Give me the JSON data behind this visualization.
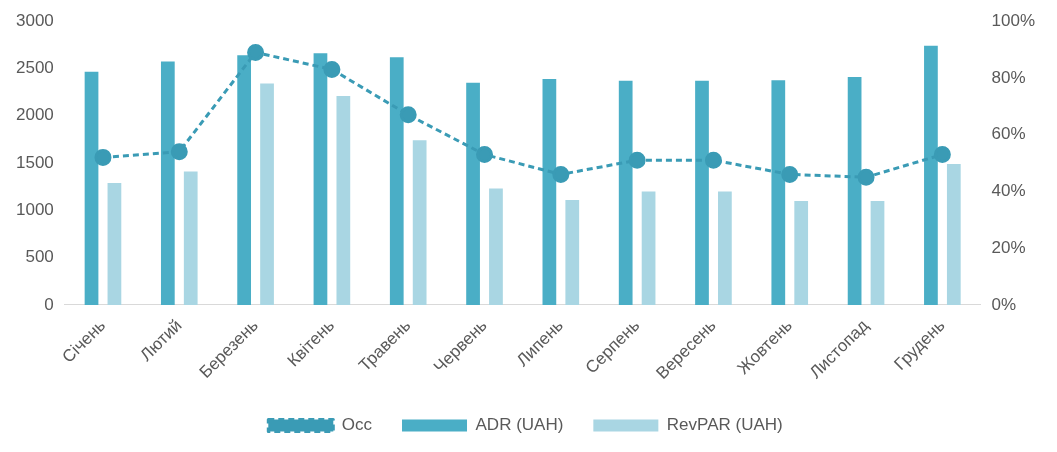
{
  "chart_data": {
    "type": "bar",
    "categories": [
      "Січень",
      "Лютий",
      "Березень",
      "Квітень",
      "Травень",
      "Червень",
      "Липень",
      "Серпень",
      "Вересень",
      "Жовтень",
      "Листопад",
      "Грудень"
    ],
    "series": [
      {
        "name": "ADR (UAH)",
        "color": "#4aaec6",
        "values": [
          2465,
          2575,
          2640,
          2660,
          2620,
          2350,
          2390,
          2370,
          2370,
          2375,
          2410,
          2740
        ]
      },
      {
        "name": "RevPAR (UAH)",
        "color": "#a9d6e3",
        "values": [
          1290,
          1410,
          2340,
          2210,
          1740,
          1230,
          1110,
          1200,
          1200,
          1100,
          1100,
          1490
        ]
      },
      {
        "name": "Occ",
        "type": "line",
        "axis": "y2",
        "color": "#3a9bb5",
        "marker": "circle",
        "line_style": "dashed",
        "values": [
          52,
          54,
          89,
          83,
          67,
          53,
          46,
          51,
          51,
          46,
          45,
          53
        ]
      }
    ],
    "ylim": [
      0,
      3000
    ],
    "yticks": [
      0,
      500,
      1000,
      1500,
      2000,
      2500,
      3000
    ],
    "y2lim": [
      0,
      100
    ],
    "y2ticks": [
      {
        "value": 0,
        "label": "0%"
      },
      {
        "value": 20,
        "label": "20%"
      },
      {
        "value": 40,
        "label": "40%"
      },
      {
        "value": 60,
        "label": "60%"
      },
      {
        "value": 80,
        "label": "80%"
      },
      {
        "value": 100,
        "label": "100%"
      }
    ],
    "grid": false,
    "legend": "bottom"
  }
}
